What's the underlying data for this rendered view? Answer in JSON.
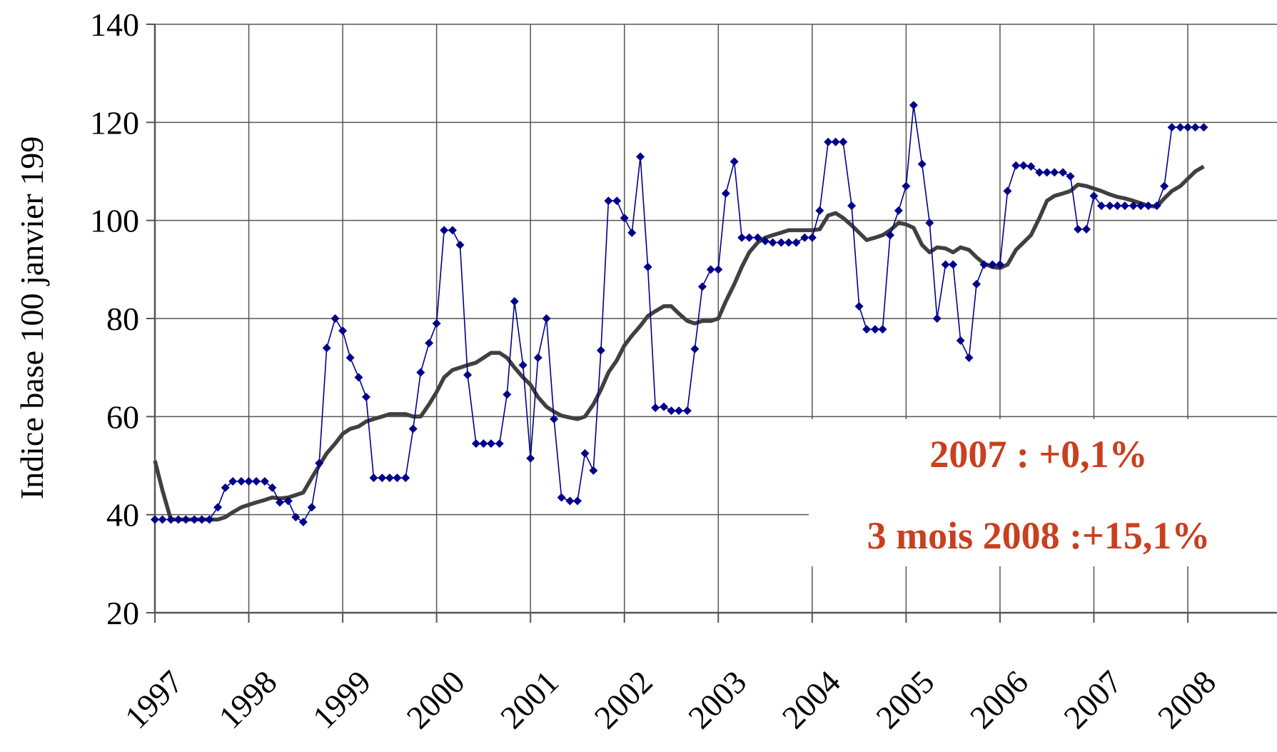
{
  "chart_data": {
    "type": "line",
    "y_label": "Indice base 100 janvier 199",
    "annotations": [
      "2007 : +0,1%",
      "3 mois 2008 :+15,1%"
    ],
    "xlim": [
      1997,
      2008.95
    ],
    "xticks": [
      1997,
      1998,
      1999,
      2000,
      2001,
      2002,
      2003,
      2004,
      2005,
      2006,
      2007,
      2008
    ],
    "ylim": [
      20,
      140
    ],
    "yticks": [
      20,
      40,
      60,
      80,
      100,
      120,
      140
    ],
    "grid": true,
    "x": [
      1997.0,
      1997.08,
      1997.17,
      1997.25,
      1997.33,
      1997.42,
      1997.5,
      1997.58,
      1997.67,
      1997.75,
      1997.83,
      1997.92,
      1998.0,
      1998.08,
      1998.17,
      1998.25,
      1998.33,
      1998.42,
      1998.5,
      1998.58,
      1998.67,
      1998.75,
      1998.83,
      1998.92,
      1999.0,
      1999.08,
      1999.17,
      1999.25,
      1999.33,
      1999.42,
      1999.5,
      1999.58,
      1999.67,
      1999.75,
      1999.83,
      1999.92,
      2000.0,
      2000.08,
      2000.17,
      2000.25,
      2000.33,
      2000.42,
      2000.5,
      2000.58,
      2000.67,
      2000.75,
      2000.83,
      2000.92,
      2001.0,
      2001.08,
      2001.17,
      2001.25,
      2001.33,
      2001.42,
      2001.5,
      2001.58,
      2001.67,
      2001.75,
      2001.83,
      2001.92,
      2002.0,
      2002.08,
      2002.17,
      2002.25,
      2002.33,
      2002.42,
      2002.5,
      2002.58,
      2002.67,
      2002.75,
      2002.83,
      2002.92,
      2003.0,
      2003.08,
      2003.17,
      2003.25,
      2003.33,
      2003.42,
      2003.5,
      2003.58,
      2003.67,
      2003.75,
      2003.83,
      2003.92,
      2004.0,
      2004.08,
      2004.17,
      2004.25,
      2004.33,
      2004.42,
      2004.5,
      2004.58,
      2004.67,
      2004.75,
      2004.83,
      2004.92,
      2005.0,
      2005.08,
      2005.17,
      2005.25,
      2005.33,
      2005.42,
      2005.5,
      2005.58,
      2005.67,
      2005.75,
      2005.83,
      2005.92,
      2006.0,
      2006.08,
      2006.17,
      2006.25,
      2006.33,
      2006.42,
      2006.5,
      2006.58,
      2006.67,
      2006.75,
      2006.83,
      2006.92,
      2007.0,
      2007.08,
      2007.17,
      2007.25,
      2007.33,
      2007.42,
      2007.5,
      2007.58,
      2007.67,
      2007.75,
      2007.83,
      2007.92,
      2008.0,
      2008.08,
      2008.17
    ],
    "series": [
      {
        "color": "#00008b",
        "marker": "diamond",
        "values": [
          39,
          39,
          39,
          39,
          39,
          39,
          39,
          39,
          41.5,
          45.5,
          46.8,
          46.8,
          46.8,
          46.8,
          46.8,
          45.5,
          42.5,
          42.8,
          39.5,
          38.5,
          41.5,
          50.5,
          74,
          80,
          77.5,
          72,
          68,
          64,
          47.5,
          47.5,
          47.5,
          47.5,
          47.5,
          57.5,
          69,
          75,
          79,
          98,
          98,
          95,
          68.5,
          54.5,
          54.5,
          54.5,
          54.5,
          64.5,
          83.5,
          70.5,
          51.5,
          72,
          80,
          59.5,
          43.5,
          42.8,
          42.8,
          52.5,
          49,
          73.5,
          104,
          104,
          100.5,
          97.5,
          113,
          90.5,
          61.8,
          62,
          61.2,
          61.2,
          61.2,
          73.8,
          86.5,
          90,
          90,
          105.5,
          112,
          96.5,
          96.5,
          96.5,
          95.8,
          95.5,
          95.5,
          95.5,
          95.5,
          96.5,
          96.5,
          102,
          116,
          116,
          116,
          103,
          82.5,
          77.8,
          77.8,
          77.8,
          97,
          102,
          107,
          123.5,
          111.5,
          99.5,
          80,
          91,
          91,
          75.5,
          72,
          87,
          91,
          91,
          91,
          106,
          111.2,
          111.2,
          111,
          109.8,
          109.8,
          109.8,
          109.8,
          109,
          98.2,
          98.2,
          105,
          103,
          103,
          103,
          103,
          103,
          103,
          103,
          103,
          107,
          119,
          119,
          119,
          119,
          119
        ]
      },
      {
        "color": "#404040",
        "values": [
          51,
          45,
          39,
          39,
          39,
          39,
          39,
          39,
          39,
          39.5,
          40.5,
          41.5,
          42,
          42.5,
          43,
          43.5,
          43.3,
          43.5,
          44,
          44.5,
          47.5,
          50,
          52.5,
          54.5,
          56.5,
          57.5,
          58,
          59,
          59.5,
          60,
          60.5,
          60.5,
          60.5,
          60,
          60,
          62.5,
          65,
          68,
          69.5,
          70,
          70.5,
          71,
          72,
          73,
          73,
          72,
          70,
          68,
          66.5,
          64,
          62,
          61,
          60.2,
          59.8,
          59.5,
          60,
          62.5,
          65.5,
          69,
          71.5,
          74.5,
          76.5,
          78.5,
          80.5,
          81.5,
          82.5,
          82.5,
          81,
          79.5,
          79,
          79.5,
          79.5,
          80,
          83.5,
          87,
          90.5,
          93.5,
          95.5,
          96.5,
          97,
          97.5,
          98,
          98,
          98,
          98,
          98.2,
          101,
          101.5,
          100.5,
          99,
          97.5,
          96,
          96.5,
          97,
          98,
          99.5,
          99.2,
          98.5,
          95,
          93.5,
          94.5,
          94.3,
          93.5,
          94.5,
          94,
          92.5,
          91.2,
          90.5,
          90.3,
          91,
          94,
          95.5,
          97,
          100.5,
          104,
          105,
          105.5,
          106,
          107.3,
          107,
          106.5,
          106,
          105.3,
          104.8,
          104.5,
          104,
          103.5,
          103,
          102.8,
          104.5,
          106,
          107,
          108.5,
          110,
          111
        ]
      }
    ]
  }
}
